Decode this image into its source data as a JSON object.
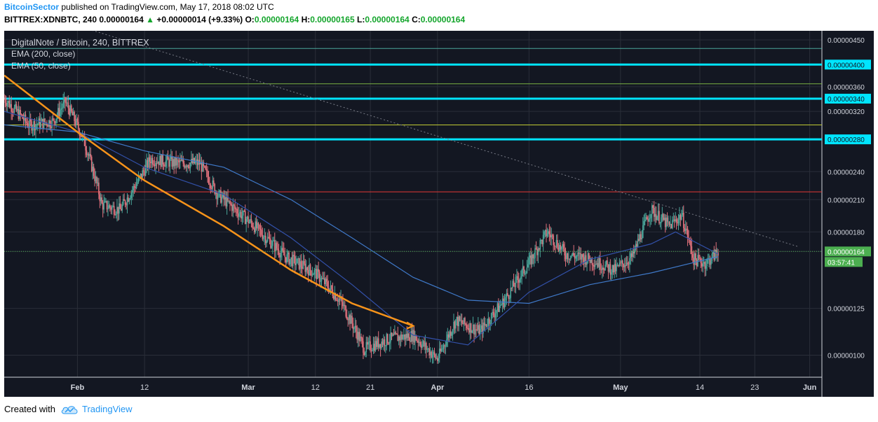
{
  "header": {
    "author": "BitcoinSector",
    "published_text": "published on TradingView.com, May 17, 2018 08:02 UTC",
    "symbol_interval": "BITTREX:XDNBTC, 240",
    "last_price": "0.00000164",
    "change": "+0.00000014 (+9.33%)",
    "o_label": "O:",
    "o_value": "0.00000164",
    "h_label": "H:",
    "h_value": "0.00000165",
    "l_label": "L:",
    "l_value": "0.00000164",
    "c_label": "C:",
    "c_value": "0.00000164"
  },
  "legend": {
    "title": "DigitalNote / Bitcoin, 240, BITTREX",
    "ema200": "EMA (200, close)",
    "ema50": "EMA (50, close)"
  },
  "footer": {
    "created_with": "Created with",
    "brand": "TradingView"
  },
  "colors": {
    "background": "#131722",
    "up_candle": "#4aa69a",
    "down_candle": "#e0717c",
    "ema200": "#3f79c9",
    "ema50": "#3250a8",
    "cyan_level": "#00e5ff",
    "orange_curve": "#f7931a",
    "current_price": "#4caf50"
  },
  "chart_data": {
    "type": "candlestick",
    "title": "DigitalNote / Bitcoin, 240, BITTREX",
    "y_ticks": [
      "0.00000450",
      "0.00000400",
      "0.00000360",
      "0.00000340",
      "0.00000320",
      "0.00000280",
      "0.00000240",
      "0.00000210",
      "0.00000180",
      "0.00000164",
      "0.00000125",
      "0.00000100"
    ],
    "x_ticks": [
      "Feb",
      "12",
      "Mar",
      "12",
      "21",
      "Apr",
      "16",
      "May",
      "14",
      "23",
      "Jun"
    ],
    "ylim": [
      9e-07,
      4.7e-06
    ],
    "x_range": [
      "2018-01-20",
      "2018-06-03"
    ],
    "y_scale": "log",
    "current_price": 1.64e-06,
    "countdown": "03:57:41",
    "horizontal_levels": [
      {
        "value": 4e-06,
        "color": "#00e5ff",
        "label": "0.00000400"
      },
      {
        "value": 3.4e-06,
        "color": "#00e5ff",
        "label": "0.00000340"
      },
      {
        "value": 2.8e-06,
        "color": "#00e5ff",
        "label": "0.00000280"
      },
      {
        "value": 4.32e-06,
        "color": "#4aa69a"
      },
      {
        "value": 3.65e-06,
        "color": "#7cb342"
      },
      {
        "value": 3e-06,
        "color": "#c0ca33"
      },
      {
        "value": 2.18e-06,
        "color": "#e53935"
      }
    ],
    "trendline": {
      "from": [
        "2018-01-30",
        4.9e-06
      ],
      "to": [
        "2018-05-30",
        1.68e-06
      ]
    },
    "orange_curve": [
      [
        "2018-01-20",
        3.8e-06
      ],
      [
        "2018-02-01",
        2.9e-06
      ],
      [
        "2018-02-12",
        2.3e-06
      ],
      [
        "2018-02-25",
        1.85e-06
      ],
      [
        "2018-03-08",
        1.5e-06
      ],
      [
        "2018-03-18",
        1.28e-06
      ],
      [
        "2018-03-28",
        1.15e-06
      ]
    ],
    "price_close": [
      [
        "2018-01-20",
        3.4e-06
      ],
      [
        "2018-01-24",
        3e-06
      ],
      [
        "2018-01-28",
        3.05e-06
      ],
      [
        "2018-01-30",
        3.35e-06
      ],
      [
        "2018-02-02",
        2.8e-06
      ],
      [
        "2018-02-05",
        2.05e-06
      ],
      [
        "2018-02-08",
        2e-06
      ],
      [
        "2018-02-11",
        2.3e-06
      ],
      [
        "2018-02-13",
        2.55e-06
      ],
      [
        "2018-02-17",
        2.5e-06
      ],
      [
        "2018-02-21",
        2.5e-06
      ],
      [
        "2018-02-24",
        2.15e-06
      ],
      [
        "2018-02-28",
        1.95e-06
      ],
      [
        "2018-03-03",
        1.8e-06
      ],
      [
        "2018-03-07",
        1.6e-06
      ],
      [
        "2018-03-12",
        1.48e-06
      ],
      [
        "2018-03-16",
        1.3e-06
      ],
      [
        "2018-03-20",
        1.03e-06
      ],
      [
        "2018-03-24",
        1.08e-06
      ],
      [
        "2018-03-28",
        1.1e-06
      ],
      [
        "2018-04-01",
        9.8e-07
      ],
      [
        "2018-04-04",
        1.18e-06
      ],
      [
        "2018-04-08",
        1.12e-06
      ],
      [
        "2018-04-12",
        1.3e-06
      ],
      [
        "2018-04-16",
        1.55e-06
      ],
      [
        "2018-04-19",
        1.8e-06
      ],
      [
        "2018-04-22",
        1.62e-06
      ],
      [
        "2018-04-26",
        1.58e-06
      ],
      [
        "2018-04-30",
        1.5e-06
      ],
      [
        "2018-05-03",
        1.6e-06
      ],
      [
        "2018-05-06",
        2e-06
      ],
      [
        "2018-05-09",
        1.85e-06
      ],
      [
        "2018-05-11",
        1.95e-06
      ],
      [
        "2018-05-13",
        1.58e-06
      ],
      [
        "2018-05-15",
        1.55e-06
      ],
      [
        "2018-05-17",
        1.64e-06
      ]
    ],
    "ema50": [
      [
        "2018-01-20",
        3.2e-06
      ],
      [
        "2018-02-01",
        2.9e-06
      ],
      [
        "2018-02-12",
        2.45e-06
      ],
      [
        "2018-02-25",
        2.15e-06
      ],
      [
        "2018-03-08",
        1.75e-06
      ],
      [
        "2018-03-18",
        1.4e-06
      ],
      [
        "2018-03-28",
        1.1e-06
      ],
      [
        "2018-04-06",
        1.05e-06
      ],
      [
        "2018-04-16",
        1.35e-06
      ],
      [
        "2018-04-26",
        1.58e-06
      ],
      [
        "2018-05-06",
        1.7e-06
      ],
      [
        "2018-05-10",
        1.8e-06
      ],
      [
        "2018-05-17",
        1.62e-06
      ]
    ],
    "ema200": [
      [
        "2018-01-20",
        3e-06
      ],
      [
        "2018-02-01",
        2.9e-06
      ],
      [
        "2018-02-12",
        2.65e-06
      ],
      [
        "2018-02-25",
        2.45e-06
      ],
      [
        "2018-03-08",
        2.1e-06
      ],
      [
        "2018-03-18",
        1.75e-06
      ],
      [
        "2018-03-28",
        1.45e-06
      ],
      [
        "2018-04-06",
        1.3e-06
      ],
      [
        "2018-04-16",
        1.28e-06
      ],
      [
        "2018-04-26",
        1.4e-06
      ],
      [
        "2018-05-06",
        1.48e-06
      ],
      [
        "2018-05-17",
        1.6e-06
      ]
    ]
  }
}
